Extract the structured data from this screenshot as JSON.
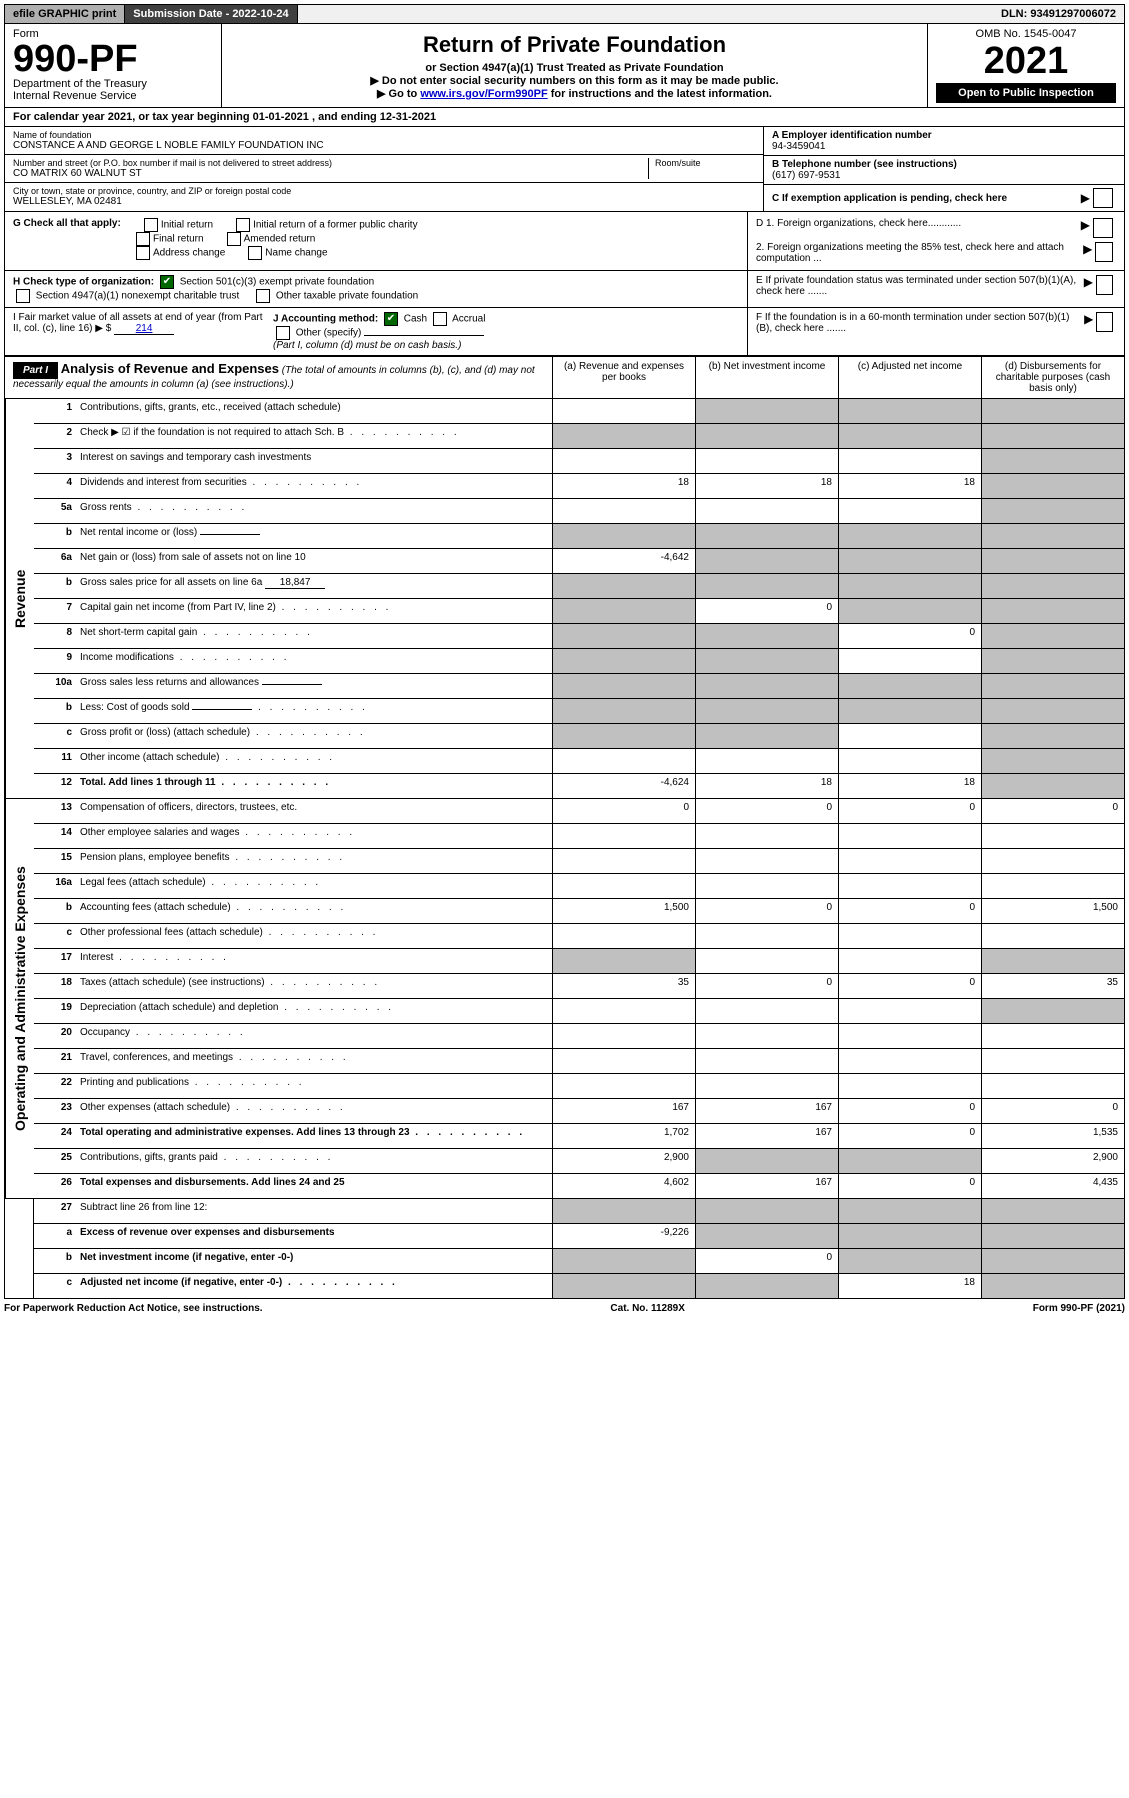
{
  "top": {
    "efile": "efile GRAPHIC print",
    "submission": "Submission Date - 2022-10-24",
    "dln": "DLN: 93491297006072"
  },
  "header": {
    "form_label": "Form",
    "form_number": "990-PF",
    "dept": "Department of the Treasury",
    "irs": "Internal Revenue Service",
    "title": "Return of Private Foundation",
    "subtitle": "or Section 4947(a)(1) Trust Treated as Private Foundation",
    "note1": "▶ Do not enter social security numbers on this form as it may be made public.",
    "note2_pre": "▶ Go to ",
    "note2_link": "www.irs.gov/Form990PF",
    "note2_post": " for instructions and the latest information.",
    "omb": "OMB No. 1545-0047",
    "year": "2021",
    "open": "Open to Public Inspection"
  },
  "calyear": "For calendar year 2021, or tax year beginning 01-01-2021                         , and ending 12-31-2021",
  "foundation": {
    "name_label": "Name of foundation",
    "name": "CONSTANCE A AND GEORGE L NOBLE FAMILY FOUNDATION INC",
    "addr_label": "Number and street (or P.O. box number if mail is not delivered to street address)",
    "addr": "CO MATRIX 60 WALNUT ST",
    "room_label": "Room/suite",
    "city_label": "City or town, state or province, country, and ZIP or foreign postal code",
    "city": "WELLESLEY, MA  02481",
    "ein_label": "A Employer identification number",
    "ein": "94-3459041",
    "phone_label": "B Telephone number (see instructions)",
    "phone": "(617) 697-9531",
    "c_label": "C If exemption application is pending, check here"
  },
  "checks": {
    "g": "G Check all that apply:",
    "g_opts": [
      "Initial return",
      "Initial return of a former public charity",
      "Final return",
      "Amended return",
      "Address change",
      "Name change"
    ],
    "h": "H Check type of organization:",
    "h1": "Section 501(c)(3) exempt private foundation",
    "h2": "Section 4947(a)(1) nonexempt charitable trust",
    "h3": "Other taxable private foundation",
    "i_pre": "I Fair market value of all assets at end of year (from Part II, col. (c), line 16) ▶ $",
    "i_val": "214",
    "j": "J Accounting method:",
    "j_cash": "Cash",
    "j_accrual": "Accrual",
    "j_other": "Other (specify)",
    "j_note": "(Part I, column (d) must be on cash basis.)",
    "d1": "D 1. Foreign organizations, check here............",
    "d2": "2. Foreign organizations meeting the 85% test, check here and attach computation ...",
    "e": "E  If private foundation status was terminated under section 507(b)(1)(A), check here .......",
    "f": "F  If the foundation is in a 60-month termination under section 507(b)(1)(B), check here .......",
    "arrow": "▶"
  },
  "part1": {
    "label": "Part I",
    "title": "Analysis of Revenue and Expenses",
    "desc": "(The total of amounts in columns (b), (c), and (d) may not necessarily equal the amounts in column (a) (see instructions).)",
    "col_a": "(a)   Revenue and expenses per books",
    "col_b": "(b)   Net investment income",
    "col_c": "(c)   Adjusted net income",
    "col_d": "(d)   Disbursements for charitable purposes (cash basis only)"
  },
  "sidelabels": {
    "revenue": "Revenue",
    "expenses": "Operating and Administrative Expenses"
  },
  "rows": [
    {
      "n": "1",
      "label": "Contributions, gifts, grants, etc., received (attach schedule)",
      "a": "",
      "b": "shade",
      "c": "shade",
      "d": "shade"
    },
    {
      "n": "2",
      "label": "Check ▶ ☑ if the foundation is not required to attach Sch. B",
      "a": "shade",
      "b": "shade",
      "c": "shade",
      "d": "shade",
      "bold_not": true,
      "dots": true
    },
    {
      "n": "3",
      "label": "Interest on savings and temporary cash investments",
      "a": "",
      "b": "",
      "c": "",
      "d": "shade"
    },
    {
      "n": "4",
      "label": "Dividends and interest from securities",
      "a": "18",
      "b": "18",
      "c": "18",
      "d": "shade",
      "dots": true
    },
    {
      "n": "5a",
      "label": "Gross rents",
      "a": "",
      "b": "",
      "c": "",
      "d": "shade",
      "dots": true
    },
    {
      "n": "b",
      "label": "Net rental income or (loss)",
      "a": "shade",
      "b": "shade",
      "c": "shade",
      "d": "shade",
      "inline": ""
    },
    {
      "n": "6a",
      "label": "Net gain or (loss) from sale of assets not on line 10",
      "a": "-4,642",
      "b": "shade",
      "c": "shade",
      "d": "shade"
    },
    {
      "n": "b",
      "label": "Gross sales price for all assets on line 6a",
      "a": "shade",
      "b": "shade",
      "c": "shade",
      "d": "shade",
      "inline": "18,847"
    },
    {
      "n": "7",
      "label": "Capital gain net income (from Part IV, line 2)",
      "a": "shade",
      "b": "0",
      "c": "shade",
      "d": "shade",
      "dots": true
    },
    {
      "n": "8",
      "label": "Net short-term capital gain",
      "a": "shade",
      "b": "shade",
      "c": "0",
      "d": "shade",
      "dots": true
    },
    {
      "n": "9",
      "label": "Income modifications",
      "a": "shade",
      "b": "shade",
      "c": "",
      "d": "shade",
      "dots": true
    },
    {
      "n": "10a",
      "label": "Gross sales less returns and allowances",
      "a": "shade",
      "b": "shade",
      "c": "shade",
      "d": "shade",
      "inline": ""
    },
    {
      "n": "b",
      "label": "Less: Cost of goods sold",
      "a": "shade",
      "b": "shade",
      "c": "shade",
      "d": "shade",
      "inline": "",
      "dots": true
    },
    {
      "n": "c",
      "label": "Gross profit or (loss) (attach schedule)",
      "a": "shade",
      "b": "shade",
      "c": "",
      "d": "shade",
      "dots": true
    },
    {
      "n": "11",
      "label": "Other income (attach schedule)",
      "a": "",
      "b": "",
      "c": "",
      "d": "shade",
      "dots": true
    },
    {
      "n": "12",
      "label": "Total. Add lines 1 through 11",
      "a": "-4,624",
      "b": "18",
      "c": "18",
      "d": "shade",
      "bold": true,
      "dots": true
    }
  ],
  "exp_rows": [
    {
      "n": "13",
      "label": "Compensation of officers, directors, trustees, etc.",
      "a": "0",
      "b": "0",
      "c": "0",
      "d": "0"
    },
    {
      "n": "14",
      "label": "Other employee salaries and wages",
      "a": "",
      "b": "",
      "c": "",
      "d": "",
      "dots": true
    },
    {
      "n": "15",
      "label": "Pension plans, employee benefits",
      "a": "",
      "b": "",
      "c": "",
      "d": "",
      "dots": true
    },
    {
      "n": "16a",
      "label": "Legal fees (attach schedule)",
      "a": "",
      "b": "",
      "c": "",
      "d": "",
      "dots": true
    },
    {
      "n": "b",
      "label": "Accounting fees (attach schedule)",
      "a": "1,500",
      "b": "0",
      "c": "0",
      "d": "1,500",
      "dots": true
    },
    {
      "n": "c",
      "label": "Other professional fees (attach schedule)",
      "a": "",
      "b": "",
      "c": "",
      "d": "",
      "dots": true
    },
    {
      "n": "17",
      "label": "Interest",
      "a": "shade",
      "b": "",
      "c": "",
      "d": "shade",
      "dots": true
    },
    {
      "n": "18",
      "label": "Taxes (attach schedule) (see instructions)",
      "a": "35",
      "b": "0",
      "c": "0",
      "d": "35",
      "dots": true
    },
    {
      "n": "19",
      "label": "Depreciation (attach schedule) and depletion",
      "a": "",
      "b": "",
      "c": "",
      "d": "shade",
      "dots": true
    },
    {
      "n": "20",
      "label": "Occupancy",
      "a": "",
      "b": "",
      "c": "",
      "d": "",
      "dots": true
    },
    {
      "n": "21",
      "label": "Travel, conferences, and meetings",
      "a": "",
      "b": "",
      "c": "",
      "d": "",
      "dots": true
    },
    {
      "n": "22",
      "label": "Printing and publications",
      "a": "",
      "b": "",
      "c": "",
      "d": "",
      "dots": true
    },
    {
      "n": "23",
      "label": "Other expenses (attach schedule)",
      "a": "167",
      "b": "167",
      "c": "0",
      "d": "0",
      "dots": true
    },
    {
      "n": "24",
      "label": "Total operating and administrative expenses. Add lines 13 through 23",
      "a": "1,702",
      "b": "167",
      "c": "0",
      "d": "1,535",
      "bold": true,
      "dots": true
    },
    {
      "n": "25",
      "label": "Contributions, gifts, grants paid",
      "a": "2,900",
      "b": "shade",
      "c": "shade",
      "d": "2,900",
      "dots": true
    },
    {
      "n": "26",
      "label": "Total expenses and disbursements. Add lines 24 and 25",
      "a": "4,602",
      "b": "167",
      "c": "0",
      "d": "4,435",
      "bold": true
    }
  ],
  "net_rows": [
    {
      "n": "27",
      "label": "Subtract line 26 from line 12:",
      "a": "shade",
      "b": "shade",
      "c": "shade",
      "d": "shade"
    },
    {
      "n": "a",
      "label": "Excess of revenue over expenses and disbursements",
      "a": "-9,226",
      "b": "shade",
      "c": "shade",
      "d": "shade",
      "bold": true
    },
    {
      "n": "b",
      "label": "Net investment income (if negative, enter -0-)",
      "a": "shade",
      "b": "0",
      "c": "shade",
      "d": "shade",
      "bold": true
    },
    {
      "n": "c",
      "label": "Adjusted net income (if negative, enter -0-)",
      "a": "shade",
      "b": "shade",
      "c": "18",
      "d": "shade",
      "bold": true,
      "dots": true
    }
  ],
  "footer": {
    "left": "For Paperwork Reduction Act Notice, see instructions.",
    "mid": "Cat. No. 11289X",
    "right": "Form 990-PF (2021)"
  },
  "colors": {
    "shade": "#c0c0c0",
    "link": "#0000cc",
    "check": "#006600"
  }
}
